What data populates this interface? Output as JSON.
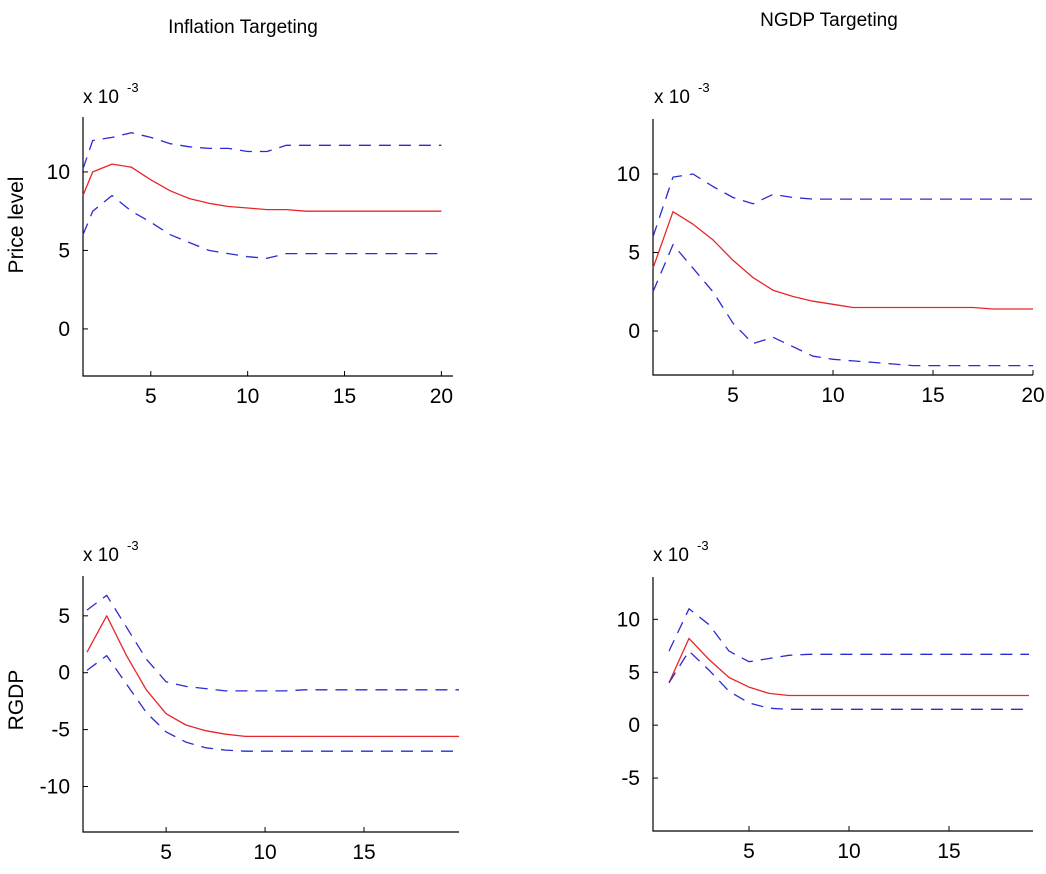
{
  "figure": {
    "column_titles": [
      "Inflation Targeting",
      "NGDP Targeting"
    ],
    "row_labels": [
      "Price level",
      "RGDP"
    ]
  },
  "colors": {
    "median_line": "#e8262a",
    "band_line": "#2b2bd4",
    "axes": "#000000"
  },
  "chart_data": [
    {
      "type": "line",
      "title": "Inflation Targeting",
      "ylabel": "Price level",
      "xlabel": "",
      "scale_base": "x 10",
      "scale_exponent": "-3",
      "xlim": [
        1.5,
        20.6
      ],
      "ylim": [
        -3,
        13.5
      ],
      "xticks": [
        5,
        10,
        15,
        20
      ],
      "xtick_labels": [
        "5",
        "10",
        "15",
        "20"
      ],
      "yticks": [
        0,
        5,
        10
      ],
      "ytick_labels": [
        "0",
        "5",
        "10"
      ],
      "grid": false,
      "series": [
        {
          "role": "upper",
          "style": "dashed",
          "x": [
            1.5,
            2,
            3,
            4,
            5,
            6,
            7,
            8,
            9,
            10,
            11,
            12,
            13,
            14,
            15,
            16,
            17,
            18,
            19,
            20
          ],
          "y": [
            10.2,
            12.0,
            12.2,
            12.5,
            12.2,
            11.8,
            11.6,
            11.5,
            11.5,
            11.3,
            11.3,
            11.7,
            11.7,
            11.7,
            11.7,
            11.7,
            11.7,
            11.7,
            11.7,
            11.7
          ]
        },
        {
          "role": "median",
          "style": "solid",
          "x": [
            1.5,
            2,
            3,
            4,
            5,
            6,
            7,
            8,
            9,
            10,
            11,
            12,
            13,
            14,
            15,
            16,
            17,
            18,
            19,
            20
          ],
          "y": [
            8.5,
            10.0,
            10.5,
            10.3,
            9.5,
            8.8,
            8.3,
            8.0,
            7.8,
            7.7,
            7.6,
            7.6,
            7.5,
            7.5,
            7.5,
            7.5,
            7.5,
            7.5,
            7.5,
            7.5
          ]
        },
        {
          "role": "lower",
          "style": "dashed",
          "x": [
            1.5,
            2,
            3,
            4,
            5,
            6,
            7,
            8,
            9,
            10,
            11,
            12,
            13,
            14,
            15,
            16,
            17,
            18,
            19,
            20
          ],
          "y": [
            6.0,
            7.5,
            8.5,
            7.5,
            6.8,
            6.0,
            5.5,
            5.0,
            4.8,
            4.6,
            4.5,
            4.8,
            4.8,
            4.8,
            4.8,
            4.8,
            4.8,
            4.8,
            4.8,
            4.8
          ]
        }
      ]
    },
    {
      "type": "line",
      "title": "NGDP Targeting",
      "ylabel": "",
      "xlabel": "",
      "scale_base": "x 10",
      "scale_exponent": "-3",
      "xlim": [
        1,
        20
      ],
      "ylim": [
        -2.8,
        13.5
      ],
      "xticks": [
        5,
        10,
        15,
        20
      ],
      "xtick_labels": [
        "5",
        "10",
        "15",
        "20"
      ],
      "yticks": [
        0,
        5,
        10
      ],
      "ytick_labels": [
        "0",
        "5",
        "10"
      ],
      "grid": false,
      "series": [
        {
          "role": "upper",
          "style": "dashed",
          "x": [
            1,
            2,
            3,
            4,
            5,
            6,
            7,
            8,
            9,
            10,
            11,
            12,
            13,
            14,
            15,
            16,
            17,
            18,
            19,
            20
          ],
          "y": [
            6.0,
            9.8,
            10.0,
            9.2,
            8.5,
            8.1,
            8.7,
            8.5,
            8.4,
            8.4,
            8.4,
            8.4,
            8.4,
            8.4,
            8.4,
            8.4,
            8.4,
            8.4,
            8.4,
            8.4
          ]
        },
        {
          "role": "median",
          "style": "solid",
          "x": [
            1,
            2,
            3,
            4,
            5,
            6,
            7,
            8,
            9,
            10,
            11,
            12,
            13,
            14,
            15,
            16,
            17,
            18,
            19,
            20
          ],
          "y": [
            4.0,
            7.6,
            6.8,
            5.8,
            4.5,
            3.4,
            2.6,
            2.2,
            1.9,
            1.7,
            1.5,
            1.5,
            1.5,
            1.5,
            1.5,
            1.5,
            1.5,
            1.4,
            1.4,
            1.4
          ]
        },
        {
          "role": "lower",
          "style": "dashed",
          "x": [
            1,
            2,
            3,
            4,
            5,
            6,
            7,
            8,
            9,
            10,
            11,
            12,
            13,
            14,
            15,
            16,
            17,
            18,
            19,
            20
          ],
          "y": [
            2.5,
            5.5,
            4.0,
            2.5,
            0.5,
            -0.8,
            -0.4,
            -1.0,
            -1.6,
            -1.8,
            -1.9,
            -2.0,
            -2.1,
            -2.2,
            -2.2,
            -2.2,
            -2.2,
            -2.2,
            -2.2,
            -2.2
          ]
        }
      ]
    },
    {
      "type": "line",
      "title": "",
      "ylabel": "RGDP",
      "xlabel": "",
      "scale_base": "x 10",
      "scale_exponent": "-3",
      "xlim": [
        0.8,
        19.8
      ],
      "ylim": [
        -14,
        8.5
      ],
      "xticks": [
        5,
        10,
        15
      ],
      "xtick_labels": [
        "5",
        "10",
        "15"
      ],
      "yticks": [
        -10,
        -5,
        0,
        5
      ],
      "ytick_labels": [
        "-10",
        "-5",
        "0",
        "5"
      ],
      "grid": false,
      "series": [
        {
          "role": "upper",
          "style": "dashed",
          "x": [
            1,
            2,
            3,
            4,
            5,
            6,
            7,
            8,
            9,
            10,
            11,
            12,
            13,
            14,
            15,
            16,
            17,
            18,
            19,
            19.8
          ],
          "y": [
            5.5,
            6.8,
            4.0,
            1.2,
            -0.8,
            -1.2,
            -1.4,
            -1.6,
            -1.6,
            -1.6,
            -1.6,
            -1.5,
            -1.5,
            -1.5,
            -1.5,
            -1.5,
            -1.5,
            -1.5,
            -1.5,
            -1.5
          ]
        },
        {
          "role": "median",
          "style": "solid",
          "x": [
            1,
            2,
            3,
            4,
            5,
            6,
            7,
            8,
            9,
            10,
            11,
            12,
            13,
            14,
            15,
            16,
            17,
            18,
            19,
            19.8
          ],
          "y": [
            1.8,
            5.0,
            1.5,
            -1.5,
            -3.6,
            -4.6,
            -5.1,
            -5.4,
            -5.6,
            -5.6,
            -5.6,
            -5.6,
            -5.6,
            -5.6,
            -5.6,
            -5.6,
            -5.6,
            -5.6,
            -5.6,
            -5.6
          ]
        },
        {
          "role": "lower",
          "style": "dashed",
          "x": [
            1,
            2,
            3,
            4,
            5,
            6,
            7,
            8,
            9,
            10,
            11,
            12,
            13,
            14,
            15,
            16,
            17,
            18,
            19,
            19.8
          ],
          "y": [
            0.2,
            1.5,
            -1.0,
            -3.5,
            -5.2,
            -6.1,
            -6.6,
            -6.8,
            -6.9,
            -6.9,
            -6.9,
            -6.9,
            -6.9,
            -6.9,
            -6.9,
            -6.9,
            -6.9,
            -6.9,
            -6.9,
            -6.9
          ]
        }
      ]
    },
    {
      "type": "line",
      "title": "",
      "ylabel": "",
      "xlabel": "",
      "scale_base": "x 10",
      "scale_exponent": "-3",
      "xlim": [
        0.2,
        19.2
      ],
      "ylim": [
        -10,
        14
      ],
      "xticks": [
        5,
        10,
        15
      ],
      "xtick_labels": [
        "5",
        "10",
        "15"
      ],
      "yticks": [
        -5,
        0,
        5,
        10
      ],
      "ytick_labels": [
        "-5",
        "0",
        "5",
        "10"
      ],
      "grid": false,
      "series": [
        {
          "role": "upper",
          "style": "dashed",
          "x": [
            1,
            2,
            3,
            4,
            5,
            6,
            7,
            8,
            9,
            10,
            11,
            12,
            13,
            14,
            15,
            16,
            17,
            18,
            19
          ],
          "y": [
            7.0,
            11.0,
            9.5,
            7.0,
            6.0,
            6.3,
            6.6,
            6.7,
            6.7,
            6.7,
            6.7,
            6.7,
            6.7,
            6.7,
            6.7,
            6.7,
            6.7,
            6.7,
            6.7
          ]
        },
        {
          "role": "median",
          "style": "solid",
          "x": [
            1,
            2,
            3,
            4,
            5,
            6,
            7,
            8,
            9,
            10,
            11,
            12,
            13,
            14,
            15,
            16,
            17,
            18,
            19
          ],
          "y": [
            4.0,
            8.2,
            6.2,
            4.5,
            3.6,
            3.0,
            2.8,
            2.8,
            2.8,
            2.8,
            2.8,
            2.8,
            2.8,
            2.8,
            2.8,
            2.8,
            2.8,
            2.8,
            2.8
          ]
        },
        {
          "role": "lower",
          "style": "dashed",
          "x": [
            1,
            2,
            3,
            4,
            5,
            6,
            7,
            8,
            9,
            10,
            11,
            12,
            13,
            14,
            15,
            16,
            17,
            18,
            19
          ],
          "y": [
            4.0,
            7.0,
            5.2,
            3.2,
            2.1,
            1.6,
            1.5,
            1.5,
            1.5,
            1.5,
            1.5,
            1.5,
            1.5,
            1.5,
            1.5,
            1.5,
            1.5,
            1.5,
            1.5
          ]
        }
      ]
    }
  ]
}
